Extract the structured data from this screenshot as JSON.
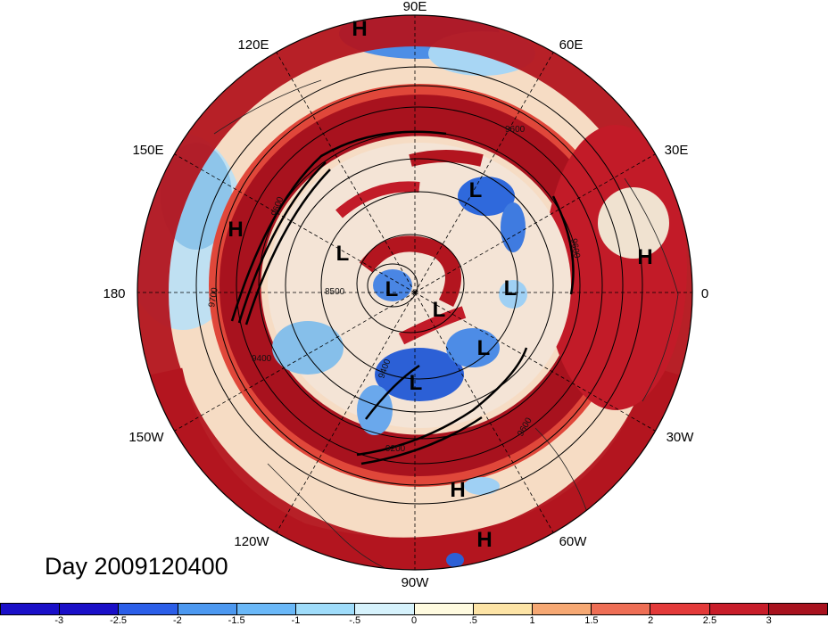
{
  "title": "Day 2009120400",
  "longitude_labels": [
    {
      "id": "90E",
      "text": "90E"
    },
    {
      "id": "60E",
      "text": "60E"
    },
    {
      "id": "30E",
      "text": "30E"
    },
    {
      "id": "0",
      "text": "0"
    },
    {
      "id": "30W",
      "text": "30W"
    },
    {
      "id": "60W",
      "text": "60W"
    },
    {
      "id": "90W",
      "text": "90W"
    },
    {
      "id": "120W",
      "text": "120W"
    },
    {
      "id": "150W",
      "text": "150W"
    },
    {
      "id": "180",
      "text": "180"
    },
    {
      "id": "150E",
      "text": "150E"
    },
    {
      "id": "120E",
      "text": "120E"
    }
  ],
  "pressure_centers": [
    "H",
    "H",
    "H",
    "H",
    "H",
    "L",
    "L",
    "L",
    "L",
    "L",
    "L",
    "L"
  ],
  "contour_labels": [
    "9600",
    "9700",
    "9400",
    "8500",
    "9600",
    "9600",
    "9200",
    "9600",
    "9400"
  ],
  "colorbar": {
    "colors": [
      "#1a0fc8",
      "#2b5ee8",
      "#4c98f0",
      "#6ab8f8",
      "#9fdcfa",
      "#d6f2fc",
      "#fffbe0",
      "#fde4a6",
      "#f6a873",
      "#ee6e55",
      "#e33a3a",
      "#c81d2a",
      "#a8121e"
    ],
    "tick_labels": [
      "-3",
      "-2.5",
      "-2",
      "-1.5",
      "-1",
      "-.5",
      "0",
      ".5",
      "1",
      "1.5",
      "2",
      "2.5",
      "3"
    ]
  }
}
